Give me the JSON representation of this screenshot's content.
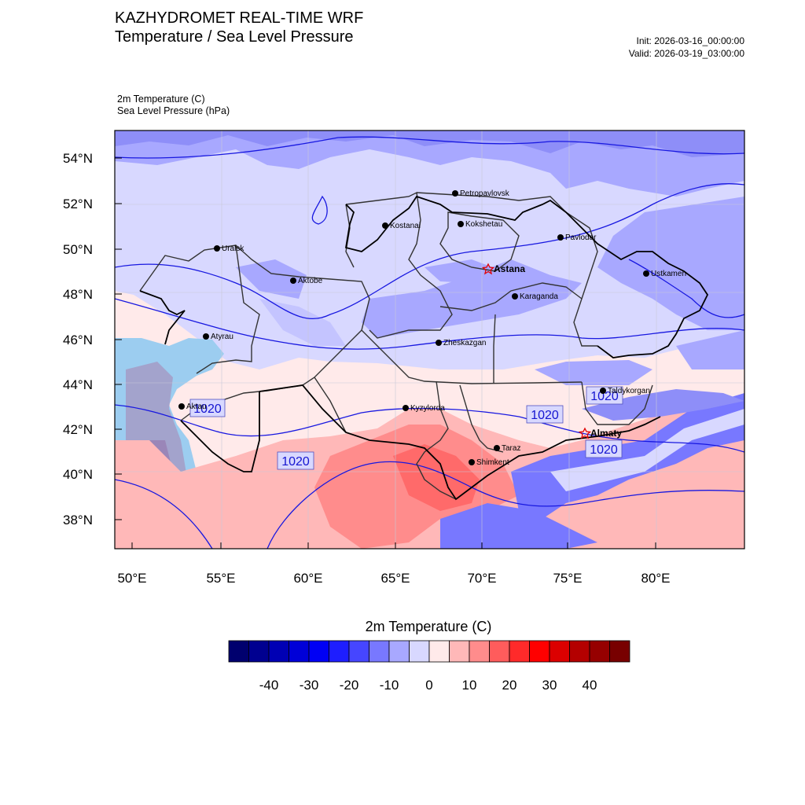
{
  "header": {
    "title": "KAZHYDROMET REAL-TIME WRF",
    "subtitle": "Temperature / Sea Level Pressure",
    "init": "Init: 2026-03-16_00:00:00",
    "valid": "Valid: 2026-03-19_03:00:00"
  },
  "fields": {
    "primary": "2m Temperature   (C)",
    "secondary": "Sea Level Pressure   (hPa)"
  },
  "map": {
    "lon_ticks": [
      "50°E",
      "55°E",
      "60°E",
      "65°E",
      "70°E",
      "75°E",
      "80°E"
    ],
    "lat_ticks": [
      "54°N",
      "52°N",
      "50°N",
      "48°N",
      "46°N",
      "44°N",
      "42°N",
      "40°N",
      "38°N"
    ],
    "cities": [
      {
        "name": "Petropavlovsk",
        "capital": false
      },
      {
        "name": "Kostanai",
        "capital": false
      },
      {
        "name": "Kokshetau",
        "capital": false
      },
      {
        "name": "Pavlodar",
        "capital": false
      },
      {
        "name": "Uralsk",
        "capital": false
      },
      {
        "name": "Astana",
        "capital": true
      },
      {
        "name": "Aktobe",
        "capital": false
      },
      {
        "name": "Ustkamen",
        "capital": false
      },
      {
        "name": "Karaganda",
        "capital": false
      },
      {
        "name": "Atyrau",
        "capital": false
      },
      {
        "name": "Zheskazgan",
        "capital": false
      },
      {
        "name": "Taldykorgan",
        "capital": false
      },
      {
        "name": "Aktau",
        "capital": false
      },
      {
        "name": "Kyzylorda",
        "capital": false
      },
      {
        "name": "Almaty",
        "capital": true
      },
      {
        "name": "Taraz",
        "capital": false
      },
      {
        "name": "Shimkent",
        "capital": false
      }
    ],
    "isobar_labels": [
      "1020",
      "1020",
      "1020",
      "1020",
      "1020"
    ]
  },
  "colorbar": {
    "title": "2m Temperature  (C)",
    "labels": [
      "-40",
      "-30",
      "-20",
      "-10",
      "0",
      "10",
      "20",
      "30",
      "40"
    ],
    "colors": [
      "#00006e",
      "#000090",
      "#0000b4",
      "#0000d8",
      "#0000f5",
      "#1e1eff",
      "#4646ff",
      "#7878ff",
      "#a8a8ff",
      "#d8d8ff",
      "#ffeaea",
      "#ffb8b8",
      "#ff8c8c",
      "#ff5c5c",
      "#ff2a2a",
      "#ff0000",
      "#dc0000",
      "#b40000",
      "#960000",
      "#780000"
    ]
  }
}
